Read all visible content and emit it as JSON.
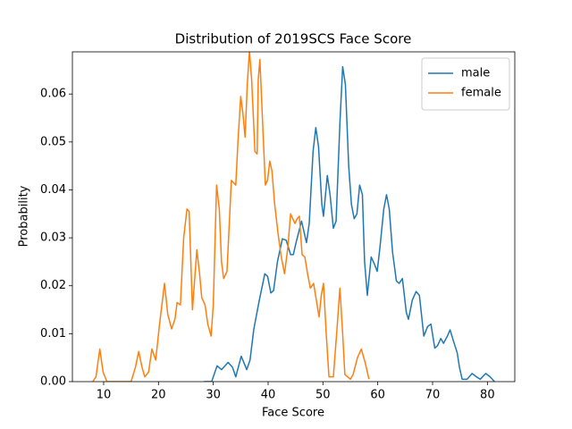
{
  "chart_data": {
    "type": "line",
    "title": "Distribution of 2019SCS Face Score",
    "x_label": "Face Score",
    "y_label": "Probability",
    "xlim": [
      4.3,
      85.0
    ],
    "ylim": [
      0,
      0.0688
    ],
    "xticks": [
      10,
      20,
      30,
      40,
      50,
      60,
      70,
      80
    ],
    "yticks": [
      {
        "value": 0,
        "label": "0.00"
      },
      0.01,
      0.02,
      0.03,
      0.04,
      0.05,
      0.06
    ],
    "legend": "upper right",
    "series": [
      {
        "name": "male",
        "color": "#1f77b4",
        "x": [
          28.3,
          29.7,
          30.7,
          31.5,
          32.7,
          33.5,
          34.1,
          35.1,
          36.1,
          36.7,
          37.4,
          38.4,
          39.4,
          39.9,
          40.5,
          41.0,
          41.7,
          42.6,
          43.3,
          44.1,
          44.6,
          45.1,
          46.1,
          47.0,
          47.5,
          48.2,
          48.7,
          49.2,
          49.8,
          50.1,
          50.8,
          51.3,
          51.9,
          52.4,
          53.1,
          53.6,
          54.1,
          54.7,
          55.2,
          55.7,
          56.2,
          56.7,
          57.2,
          57.6,
          58.1,
          58.8,
          59.4,
          59.9,
          60.4,
          61.1,
          61.6,
          62.1,
          62.7,
          63.4,
          63.9,
          64.5,
          65.2,
          65.6,
          66.3,
          67.0,
          67.6,
          68.4,
          69.1,
          69.7,
          70.4,
          70.9,
          71.5,
          72.0,
          72.7,
          73.2,
          73.8,
          74.5,
          74.9,
          75.4,
          76.3,
          77.2,
          78.0,
          78.7,
          79.7,
          80.5,
          81.3
        ],
        "values": [
          0,
          0,
          0.0033,
          0.0025,
          0.004,
          0.003,
          0.001,
          0.0053,
          0.0025,
          0.0045,
          0.011,
          0.017,
          0.0225,
          0.022,
          0.0185,
          0.019,
          0.025,
          0.0298,
          0.0295,
          0.0265,
          0.0265,
          0.029,
          0.0335,
          0.029,
          0.033,
          0.048,
          0.053,
          0.049,
          0.037,
          0.0345,
          0.043,
          0.039,
          0.032,
          0.0335,
          0.054,
          0.0657,
          0.062,
          0.045,
          0.037,
          0.034,
          0.035,
          0.041,
          0.039,
          0.025,
          0.018,
          0.026,
          0.0245,
          0.023,
          0.028,
          0.036,
          0.039,
          0.036,
          0.027,
          0.021,
          0.0205,
          0.0215,
          0.0145,
          0.013,
          0.017,
          0.0188,
          0.018,
          0.0095,
          0.0115,
          0.012,
          0.007,
          0.0075,
          0.009,
          0.008,
          0.0095,
          0.0108,
          0.0085,
          0.006,
          0.003,
          0.0005,
          0.0005,
          0.0017,
          0.001,
          0.0005,
          0.0017,
          0.001,
          0
        ]
      },
      {
        "name": "female",
        "color": "#ff7f0e",
        "x": [
          8.0,
          8.6,
          9.3,
          9.9,
          10.6,
          15.0,
          15.8,
          16.4,
          17.0,
          17.5,
          18.2,
          18.8,
          19.5,
          20.2,
          21.1,
          21.7,
          22.4,
          23.0,
          23.4,
          24.0,
          24.6,
          25.2,
          25.6,
          26.2,
          27.0,
          27.5,
          27.9,
          28.5,
          29.0,
          29.6,
          30.0,
          30.6,
          31.1,
          31.5,
          31.9,
          32.5,
          33.3,
          34.1,
          34.5,
          35.0,
          35.4,
          35.8,
          36.2,
          36.6,
          37.0,
          37.6,
          38.0,
          38.2,
          38.5,
          39.0,
          39.5,
          39.9,
          40.3,
          40.7,
          41.2,
          41.8,
          42.4,
          43.0,
          43.6,
          44.1,
          44.5,
          44.9,
          45.3,
          45.7,
          46.2,
          46.7,
          47.2,
          47.7,
          48.3,
          48.8,
          49.3,
          49.7,
          50.1,
          50.6,
          51.1,
          51.9,
          52.5,
          53.1,
          53.6,
          54.0,
          55.0,
          55.5,
          56.3,
          57.0,
          57.7,
          58.4
        ],
        "values": [
          0,
          0.001,
          0.0068,
          0.002,
          0,
          0,
          0.003,
          0.0063,
          0.003,
          0.001,
          0.002,
          0.0068,
          0.0045,
          0.012,
          0.0205,
          0.014,
          0.011,
          0.013,
          0.0165,
          0.016,
          0.03,
          0.036,
          0.0355,
          0.015,
          0.0275,
          0.0225,
          0.0175,
          0.016,
          0.012,
          0.0095,
          0.016,
          0.041,
          0.036,
          0.025,
          0.0215,
          0.023,
          0.042,
          0.041,
          0.05,
          0.0595,
          0.056,
          0.051,
          0.062,
          0.069,
          0.063,
          0.048,
          0.0475,
          0.063,
          0.0672,
          0.054,
          0.041,
          0.042,
          0.046,
          0.044,
          0.037,
          0.031,
          0.026,
          0.0225,
          0.028,
          0.035,
          0.034,
          0.033,
          0.034,
          0.0345,
          0.0265,
          0.026,
          0.0225,
          0.0195,
          0.0205,
          0.017,
          0.0135,
          0.018,
          0.0205,
          0.01,
          0.001,
          0.001,
          0.01,
          0.0195,
          0.01,
          0.0015,
          0.0005,
          0.0015,
          0.005,
          0.0068,
          0.004,
          0.0005
        ]
      }
    ]
  }
}
